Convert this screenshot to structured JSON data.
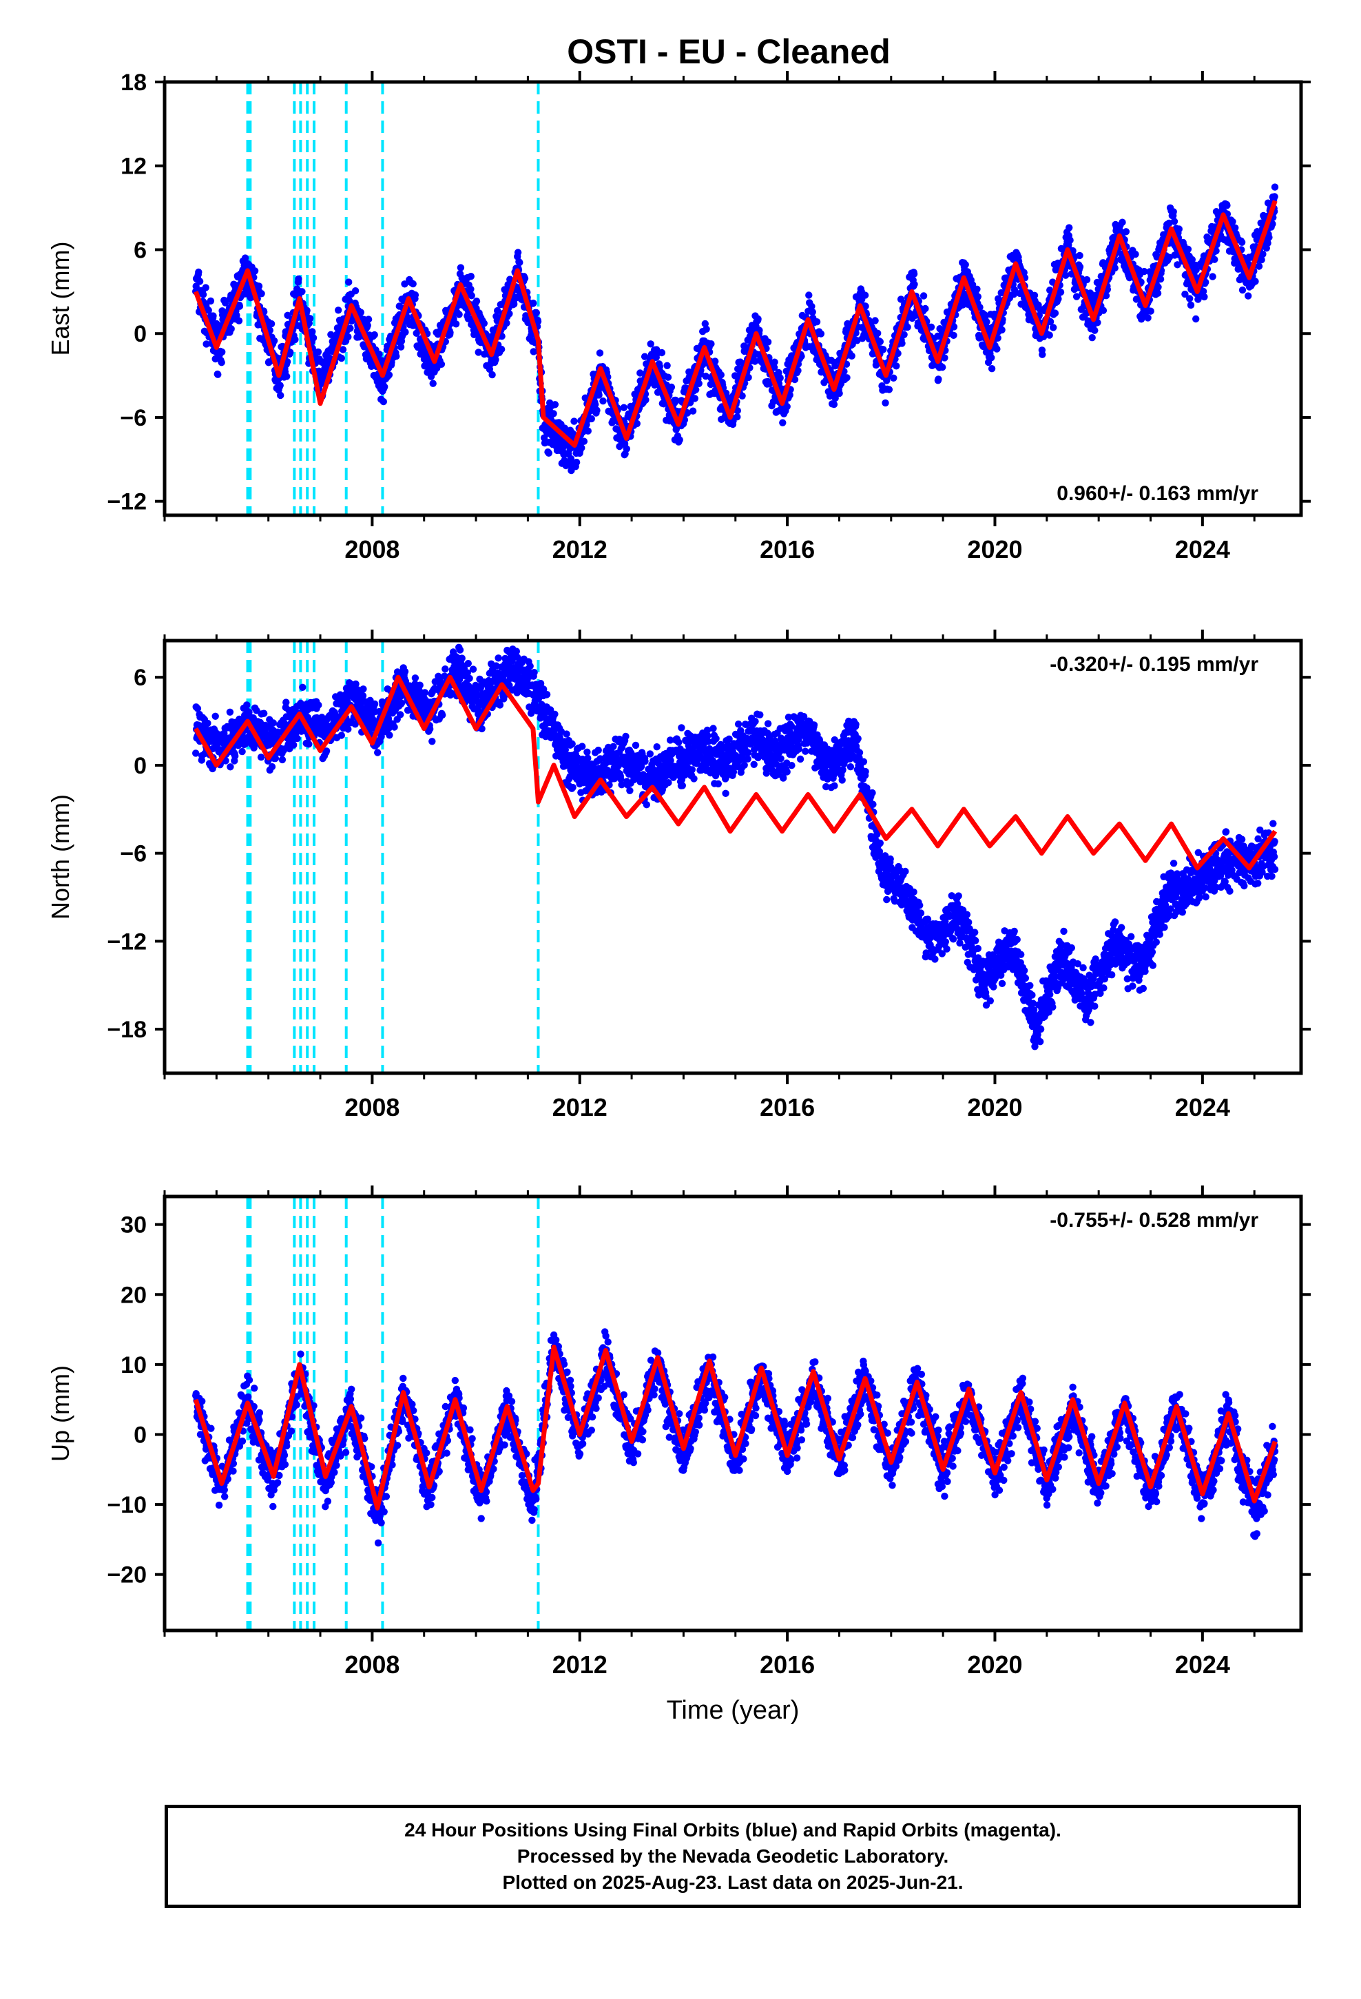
{
  "title": "OSTI  - EU - Cleaned",
  "footer": {
    "line1": "24 Hour Positions Using Final Orbits (blue) and Rapid Orbits (magenta).",
    "line2": "Processed by the Nevada Geodetic Laboratory.",
    "line3": "Plotted on 2025-Aug-23. Last data on 2025-Jun-21."
  },
  "colors": {
    "data": "#0000ff",
    "model": "#ff0000",
    "events": "#00e5ff",
    "frame": "#000000"
  },
  "chart_data": [
    {
      "type": "scatter",
      "ylabel": "East (mm)",
      "xlabel": "",
      "xlim": [
        2004.0,
        2025.9
      ],
      "ylim": [
        -13,
        18
      ],
      "yticks": [
        -12,
        -6,
        0,
        6,
        12,
        18
      ],
      "xticks": [
        2008,
        2012,
        2016,
        2020,
        2024
      ],
      "rate_label": "0.960+/- 0.163 mm/yr",
      "rate_position": "bottom-right",
      "events": [
        2005.6,
        2005.65,
        2006.5,
        2006.62,
        2006.75,
        2006.88,
        2007.5,
        2008.2,
        2011.2
      ],
      "series": [
        {
          "name": "Final Orbits",
          "role": "data",
          "x": [
            2004.6,
            2005.0,
            2005.6,
            2006.2,
            2006.6,
            2007.0,
            2007.6,
            2008.2,
            2008.7,
            2009.2,
            2009.7,
            2010.3,
            2010.8,
            2011.2,
            2011.3,
            2011.9,
            2012.4,
            2012.9,
            2013.4,
            2013.9,
            2014.4,
            2014.9,
            2015.4,
            2015.9,
            2016.4,
            2016.9,
            2017.4,
            2017.9,
            2018.4,
            2018.9,
            2019.4,
            2019.9,
            2020.4,
            2020.9,
            2021.4,
            2021.9,
            2022.4,
            2022.9,
            2023.4,
            2023.9,
            2024.4,
            2024.9,
            2025.4
          ],
          "y": [
            3.5,
            -1.0,
            4.5,
            -3.0,
            2.5,
            -3.5,
            2.0,
            -3.5,
            2.5,
            -2.5,
            3.5,
            -1.5,
            4.5,
            -0.5,
            -6.5,
            -8.5,
            -3.0,
            -7.5,
            -2.0,
            -6.5,
            -1.0,
            -6.0,
            0.0,
            -5.0,
            1.0,
            -4.0,
            2.0,
            -3.0,
            3.0,
            -2.0,
            4.0,
            -1.0,
            5.0,
            0.0,
            6.0,
            1.0,
            7.0,
            2.0,
            7.5,
            3.0,
            8.5,
            4.0,
            9.5
          ]
        },
        {
          "name": "Model",
          "role": "model",
          "x": [
            2004.6,
            2005.0,
            2005.6,
            2006.2,
            2006.6,
            2007.0,
            2007.6,
            2008.2,
            2008.7,
            2009.2,
            2009.7,
            2010.3,
            2010.8,
            2011.2,
            2011.3,
            2011.9,
            2012.4,
            2012.9,
            2013.4,
            2013.9,
            2014.4,
            2014.9,
            2015.4,
            2015.9,
            2016.4,
            2016.9,
            2017.4,
            2017.9,
            2018.4,
            2018.9,
            2019.4,
            2019.9,
            2020.4,
            2020.9,
            2021.4,
            2021.9,
            2022.4,
            2022.9,
            2023.4,
            2023.9,
            2024.4,
            2024.9,
            2025.4
          ],
          "y": [
            3.0,
            -1.0,
            4.5,
            -3.0,
            2.5,
            -5.0,
            2.0,
            -3.0,
            2.5,
            -2.0,
            3.5,
            -1.5,
            4.5,
            -0.5,
            -6.0,
            -8.0,
            -2.5,
            -7.5,
            -2.0,
            -6.5,
            -1.0,
            -6.0,
            0.0,
            -5.0,
            1.0,
            -4.0,
            2.0,
            -3.0,
            3.0,
            -2.0,
            4.0,
            -1.0,
            5.0,
            0.0,
            6.0,
            1.0,
            7.0,
            2.0,
            7.5,
            3.0,
            8.5,
            4.0,
            9.5
          ]
        }
      ]
    },
    {
      "type": "scatter",
      "ylabel": "North (mm)",
      "xlabel": "",
      "xlim": [
        2004.0,
        2025.9
      ],
      "ylim": [
        -21,
        8.5
      ],
      "yticks": [
        -18,
        -12,
        -6,
        0,
        6
      ],
      "xticks": [
        2008,
        2012,
        2016,
        2020,
        2024
      ],
      "rate_label": "-0.320+/- 0.195 mm/yr",
      "rate_position": "top-right",
      "events": [
        2005.6,
        2005.65,
        2006.5,
        2006.62,
        2006.75,
        2006.88,
        2007.5,
        2008.2,
        2011.2
      ],
      "series": [
        {
          "name": "Final Orbits",
          "role": "data",
          "x": [
            2004.6,
            2005.1,
            2005.6,
            2006.1,
            2006.6,
            2007.1,
            2007.6,
            2008.1,
            2008.6,
            2009.1,
            2009.6,
            2010.1,
            2010.6,
            2011.1,
            2011.3,
            2011.8,
            2012.3,
            2012.8,
            2013.3,
            2013.8,
            2014.3,
            2014.8,
            2015.3,
            2015.8,
            2016.3,
            2016.8,
            2017.3,
            2017.8,
            2018.3,
            2018.8,
            2019.3,
            2019.8,
            2020.3,
            2020.8,
            2021.3,
            2021.8,
            2022.3,
            2022.8,
            2023.3,
            2023.8,
            2024.3,
            2024.8,
            2025.4
          ],
          "y": [
            2.5,
            1.0,
            3.0,
            1.5,
            3.5,
            2.0,
            4.5,
            2.5,
            5.5,
            3.5,
            6.5,
            4.0,
            6.5,
            5.5,
            4.0,
            0.0,
            -1.0,
            0.5,
            -1.0,
            0.0,
            1.0,
            0.0,
            2.0,
            0.5,
            2.5,
            0.0,
            2.0,
            -7.0,
            -9.0,
            -12.0,
            -10.0,
            -15.0,
            -12.0,
            -18.0,
            -13.0,
            -16.0,
            -12.0,
            -14.0,
            -9.0,
            -8.0,
            -6.5,
            -6.5,
            -6.0
          ]
        },
        {
          "name": "Model",
          "role": "model",
          "x": [
            2004.6,
            2005.0,
            2005.6,
            2006.0,
            2006.6,
            2007.0,
            2007.6,
            2008.0,
            2008.5,
            2009.0,
            2009.5,
            2010.0,
            2010.5,
            2011.1,
            2011.2,
            2011.5,
            2011.9,
            2012.4,
            2012.9,
            2013.4,
            2013.9,
            2014.4,
            2014.9,
            2015.4,
            2015.9,
            2016.4,
            2016.9,
            2017.4,
            2017.9,
            2018.4,
            2018.9,
            2019.4,
            2019.9,
            2020.4,
            2020.9,
            2021.4,
            2021.9,
            2022.4,
            2022.9,
            2023.4,
            2023.9,
            2024.4,
            2024.9,
            2025.4
          ],
          "y": [
            2.5,
            0.0,
            3.0,
            0.5,
            3.5,
            1.0,
            4.0,
            1.5,
            6.0,
            2.5,
            6.0,
            2.5,
            5.5,
            2.5,
            -2.5,
            0.0,
            -3.5,
            -1.0,
            -3.5,
            -1.5,
            -4.0,
            -1.5,
            -4.5,
            -2.0,
            -4.5,
            -2.0,
            -4.5,
            -2.0,
            -5.0,
            -3.0,
            -5.5,
            -3.0,
            -5.5,
            -3.5,
            -6.0,
            -3.5,
            -6.0,
            -4.0,
            -6.5,
            -4.0,
            -7.0,
            -5.0,
            -7.0,
            -4.5
          ]
        }
      ]
    },
    {
      "type": "scatter",
      "ylabel": "Up (mm)",
      "xlabel": "Time (year)",
      "xlim": [
        2004.0,
        2025.9
      ],
      "ylim": [
        -28,
        34
      ],
      "yticks": [
        -20,
        -10,
        0,
        10,
        20,
        30
      ],
      "xticks": [
        2008,
        2012,
        2016,
        2020,
        2024
      ],
      "rate_label": "-0.755+/- 0.528 mm/yr",
      "rate_position": "top-right",
      "events": [
        2005.6,
        2005.65,
        2006.5,
        2006.62,
        2006.75,
        2006.88,
        2007.5,
        2008.2,
        2011.2
      ],
      "series": [
        {
          "name": "Final Orbits",
          "role": "data",
          "x": [
            2004.6,
            2005.1,
            2005.6,
            2006.1,
            2006.6,
            2007.1,
            2007.6,
            2008.1,
            2008.6,
            2009.1,
            2009.6,
            2010.1,
            2010.6,
            2011.1,
            2011.5,
            2012.0,
            2012.5,
            2013.0,
            2013.5,
            2014.0,
            2014.5,
            2015.0,
            2015.5,
            2016.0,
            2016.5,
            2017.0,
            2017.5,
            2018.0,
            2018.5,
            2019.0,
            2019.5,
            2020.0,
            2020.5,
            2021.0,
            2021.5,
            2022.0,
            2022.5,
            2023.0,
            2023.5,
            2024.0,
            2024.5,
            2025.0,
            2025.4
          ],
          "y": [
            5,
            -8,
            5,
            -7,
            9,
            -7,
            4,
            -12,
            6,
            -8,
            5,
            -9,
            4,
            -10,
            13,
            -1,
            11,
            -2,
            10,
            -3,
            9,
            -4,
            9,
            -3,
            8,
            -4,
            8,
            -5,
            7,
            -5,
            6,
            -6,
            5,
            -7,
            4,
            -8,
            4,
            -9,
            4,
            -10,
            3,
            -11,
            -2
          ]
        },
        {
          "name": "Model",
          "role": "model",
          "x": [
            2004.6,
            2005.1,
            2005.6,
            2006.1,
            2006.6,
            2007.1,
            2007.6,
            2008.1,
            2008.6,
            2009.1,
            2009.6,
            2010.1,
            2010.6,
            2011.1,
            2011.2,
            2011.5,
            2012.0,
            2012.5,
            2013.0,
            2013.5,
            2014.0,
            2014.5,
            2015.0,
            2015.5,
            2016.0,
            2016.5,
            2017.0,
            2017.5,
            2018.0,
            2018.5,
            2019.0,
            2019.5,
            2020.0,
            2020.5,
            2021.0,
            2021.5,
            2022.0,
            2022.5,
            2023.0,
            2023.5,
            2024.0,
            2024.5,
            2025.0,
            2025.4
          ],
          "y": [
            5,
            -7,
            4.5,
            -6,
            10,
            -6,
            4,
            -10.5,
            6,
            -7.5,
            5,
            -8,
            4,
            -8,
            -7,
            12.5,
            0,
            12,
            -1,
            11,
            -2,
            10.5,
            -3,
            9.5,
            -3,
            9,
            -3.5,
            8,
            -4,
            7.5,
            -5,
            6.5,
            -5.5,
            6,
            -6.5,
            5,
            -7,
            4.5,
            -7.5,
            4,
            -8.5,
            3,
            -9.5,
            -1
          ]
        }
      ]
    }
  ]
}
